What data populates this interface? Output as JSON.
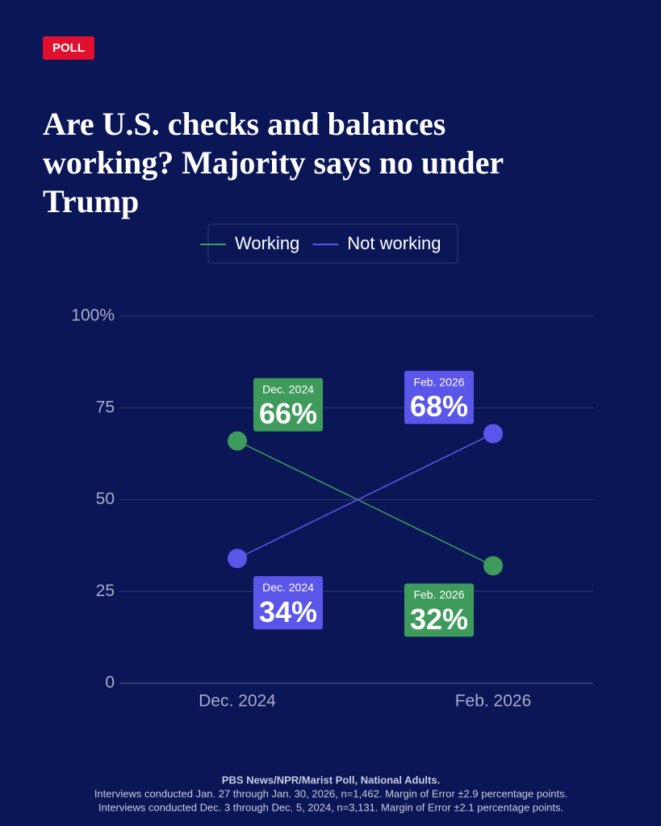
{
  "chart_data": {
    "type": "line",
    "badge": "POLL",
    "title": "Are U.S. checks and balances working? Majority says no under Trump",
    "categories": [
      "Dec. 2024",
      "Feb. 2026"
    ],
    "series": [
      {
        "name": "Working",
        "color": "#3e9b5c",
        "values": [
          66,
          32
        ],
        "value_labels": [
          "66%",
          "32%"
        ]
      },
      {
        "name": "Not working",
        "color": "#5b56ea",
        "values": [
          34,
          68
        ],
        "value_labels": [
          "34%",
          "68%"
        ]
      }
    ],
    "ylim": [
      0,
      100
    ],
    "yticks": [
      0,
      25,
      50,
      75,
      {
        "value": 100,
        "label": "100%"
      }
    ],
    "grid": true,
    "legend": "top",
    "source": [
      "PBS News/NPR/Marist Poll, National Adults.",
      "Interviews conducted Jan. 27 through Jan. 30, 2026, n=1,462. Margin of Error ±2.9 percentage points.",
      "Interviews conducted Dec. 3 through Dec. 5, 2024, n=3,131. Margin of Error ±2.1 percentage points."
    ]
  }
}
